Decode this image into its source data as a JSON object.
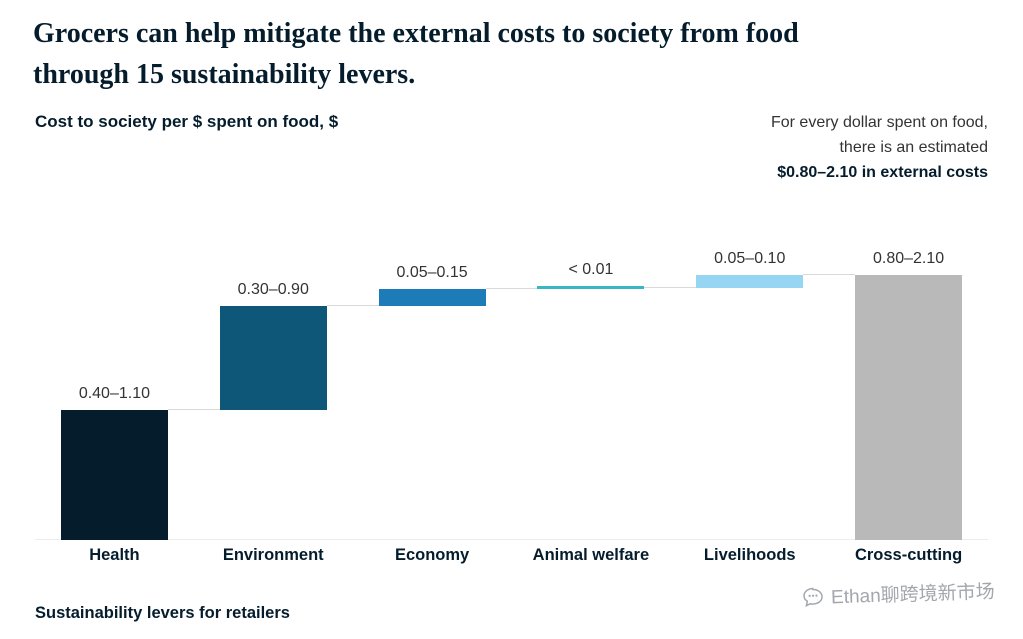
{
  "header": {
    "title": "Grocers can help mitigate the external costs to society from food through 15 sustainability levers.",
    "title_lines": [
      "Grocers can help mitigate the external costs to society from food",
      "through 15 sustainability levers."
    ]
  },
  "chart": {
    "y_label": "Cost to society per $ spent on food, $",
    "annotation": {
      "line1": "For every dollar spent on food,",
      "line2": "there is an estimated",
      "line3": "$0.80–2.10 in external costs"
    },
    "x_label": "Sustainability levers for retailers"
  },
  "watermark": {
    "text": "Ethan聊跨境新市场"
  },
  "chart_data": {
    "type": "bar",
    "subtype": "waterfall",
    "title": "Grocers can help mitigate the external costs to society from food through 15 sustainability levers.",
    "ylabel": "Cost to society per $ spent on food, $",
    "xlabel": "Sustainability levers for retailers",
    "annotation": "For every dollar spent on food, there is an estimated $0.80–2.10 in external costs",
    "categories": [
      "Health",
      "Environment",
      "Economy",
      "Animal welfare",
      "Livelihoods",
      "Cross-cutting"
    ],
    "segments": [
      {
        "category": "Health",
        "label": "0.40–1.10",
        "range": [
          0.4,
          1.1
        ],
        "plot_value": 0.75,
        "role": "increase",
        "color": "#051c2c"
      },
      {
        "category": "Environment",
        "label": "0.30–0.90",
        "range": [
          0.3,
          0.9
        ],
        "plot_value": 0.6,
        "role": "increase",
        "color": "#0f5778"
      },
      {
        "category": "Economy",
        "label": "0.05–0.15",
        "range": [
          0.05,
          0.15
        ],
        "plot_value": 0.1,
        "role": "increase",
        "color": "#1d7cb8"
      },
      {
        "category": "Animal welfare",
        "label": "< 0.01",
        "range": [
          0.0,
          0.01
        ],
        "plot_value": 0.005,
        "role": "increase",
        "color": "#38b6c4"
      },
      {
        "category": "Livelihoods",
        "label": "0.05–0.10",
        "range": [
          0.05,
          0.1
        ],
        "plot_value": 0.075,
        "role": "increase",
        "color": "#97d6f2"
      },
      {
        "category": "Cross-cutting",
        "label": "0.80–2.10",
        "range": [
          0.8,
          2.1
        ],
        "plot_value": null,
        "role": "total",
        "color": "#b9b9b9"
      }
    ],
    "ylim": [
      0,
      1.7
    ],
    "grid": false,
    "legend": false,
    "axis_visible": false
  }
}
